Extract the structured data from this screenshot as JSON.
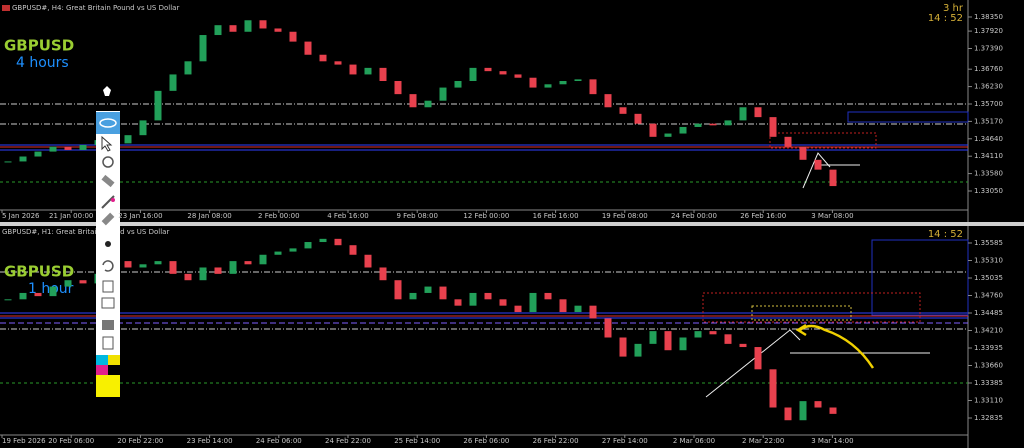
{
  "chart_data": [
    {
      "type": "candlestick",
      "title": "GBPUSD#, H4:  Great Britain Pound vs US Dollar",
      "symbol_label": "GBPUSD",
      "timeframe_label": "4 hours",
      "timer_period": "3 hr",
      "timer": "14 : 52",
      "up_color": "#22a05a",
      "down_color": "#e8414e",
      "x_tick_labels": [
        "5 Jan 2026",
        "21 Jan 00:00",
        "23 Jan 16:00",
        "28 Jan 08:00",
        "2 Feb 00:00",
        "4 Feb 16:00",
        "9 Feb 08:00",
        "12 Feb 00:00",
        "16 Feb 16:00",
        "19 Feb 08:00",
        "24 Feb 00:00",
        "26 Feb 16:00",
        "3 Mar 08:00"
      ],
      "closes": [
        1.3395,
        1.341,
        1.3425,
        1.344,
        1.343,
        1.3445,
        1.346,
        1.345,
        1.3475,
        1.352,
        1.361,
        1.366,
        1.37,
        1.378,
        1.381,
        1.379,
        1.3825,
        1.38,
        1.379,
        1.376,
        1.372,
        1.37,
        1.369,
        1.366,
        1.368,
        1.364,
        1.36,
        1.356,
        1.358,
        1.362,
        1.364,
        1.368,
        1.367,
        1.366,
        1.365,
        1.362,
        1.363,
        1.364,
        1.3645,
        1.36,
        1.356,
        1.354,
        1.351,
        1.347,
        1.348,
        1.35,
        1.351,
        1.3505,
        1.352,
        1.356,
        1.353,
        1.347,
        1.344,
        1.34,
        1.337,
        1.332
      ],
      "ylim": [
        1.32471,
        1.38715
      ],
      "yticks": [
        {
          "value": 1.3835,
          "label": "1.38350"
        },
        {
          "value": 1.3792,
          "label": "1.37920"
        },
        {
          "value": 1.3739,
          "label": "1.37390"
        },
        {
          "value": 1.3676,
          "label": "1.36760"
        },
        {
          "value": 1.3623,
          "label": "1.36230"
        },
        {
          "value": 1.357,
          "label": "1.35700"
        },
        {
          "value": 1.3517,
          "label": "1.35170"
        },
        {
          "value": 1.3464,
          "label": "1.34640"
        },
        {
          "value": 1.3411,
          "label": "1.34110"
        },
        {
          "value": 1.3358,
          "label": "1.33580"
        },
        {
          "value": 1.3305,
          "label": "1.33050"
        }
      ]
    },
    {
      "type": "candlestick",
      "title": "GBPUSD#, H1:  Great Britain Pound vs US Dollar",
      "symbol_label": "GBPUSD",
      "timeframe_label": "1 hour",
      "timer": "14 : 52",
      "up_color": "#22a05a",
      "down_color": "#e8414e",
      "x_tick_labels": [
        "19 Feb 2026",
        "20 Feb 06:00",
        "20 Feb 22:00",
        "23 Feb 14:00",
        "24 Feb 06:00",
        "24 Feb 22:00",
        "25 Feb 14:00",
        "26 Feb 06:00",
        "26 Feb 22:00",
        "27 Feb 14:00",
        "2 Mar 06:00",
        "2 Mar 22:00",
        "3 Mar 14:00"
      ],
      "closes": [
        1.347,
        1.348,
        1.3475,
        1.349,
        1.35,
        1.3495,
        1.351,
        1.353,
        1.352,
        1.3525,
        1.353,
        1.351,
        1.35,
        1.352,
        1.351,
        1.353,
        1.3525,
        1.354,
        1.3545,
        1.355,
        1.356,
        1.3565,
        1.3555,
        1.354,
        1.352,
        1.35,
        1.347,
        1.348,
        1.349,
        1.347,
        1.346,
        1.348,
        1.347,
        1.346,
        1.345,
        1.348,
        1.347,
        1.345,
        1.346,
        1.344,
        1.341,
        1.338,
        1.34,
        1.342,
        1.339,
        1.341,
        1.342,
        1.3415,
        1.34,
        1.3395,
        1.336,
        1.33,
        1.328,
        1.331,
        1.33,
        1.329
      ],
      "ylim": [
        1.32568,
        1.35789
      ],
      "yticks": [
        {
          "value": 1.35585,
          "label": "1.35585"
        },
        {
          "value": 1.3531,
          "label": "1.35310"
        },
        {
          "value": 1.35035,
          "label": "1.35035"
        },
        {
          "value": 1.3476,
          "label": "1.34760"
        },
        {
          "value": 1.34485,
          "label": "1.34485"
        },
        {
          "value": 1.3421,
          "label": "1.34210"
        },
        {
          "value": 1.33935,
          "label": "1.33935"
        },
        {
          "value": 1.3366,
          "label": "1.33660"
        },
        {
          "value": 1.33385,
          "label": "1.33385"
        },
        {
          "value": 1.3311,
          "label": "1.33110"
        },
        {
          "value": 1.32835,
          "label": "1.32835"
        }
      ]
    }
  ]
}
